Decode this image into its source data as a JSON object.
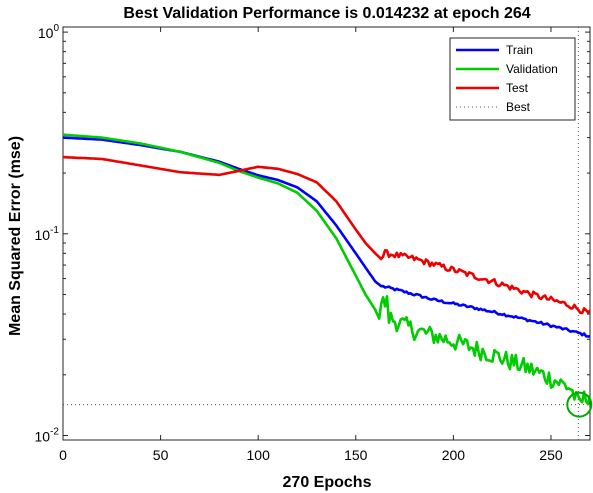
{
  "chart_data": {
    "type": "line",
    "title": "Best Validation Performance is 0.014232 at epoch 264",
    "xlabel": "270 Epochs",
    "ylabel": "Mean Squared Error  (mse)",
    "yscale": "log",
    "xlim": [
      0,
      270
    ],
    "ylim": [
      0.0095,
      1.06
    ],
    "xticks": [
      0,
      50,
      100,
      150,
      200,
      250
    ],
    "yticks": [
      {
        "value": 0.01,
        "base": "10",
        "exp": "-2"
      },
      {
        "value": 0.1,
        "base": "10",
        "exp": "-1"
      },
      {
        "value": 1,
        "base": "10",
        "exp": "0"
      }
    ],
    "grid": false,
    "legend_position": "top-right",
    "best": {
      "epoch": 264,
      "value": 0.014232,
      "label": "Best",
      "color": "#00aa00"
    },
    "series": [
      {
        "name": "Train",
        "color": "#0000ff",
        "points": [
          [
            0,
            0.3
          ],
          [
            20,
            0.293
          ],
          [
            40,
            0.275
          ],
          [
            60,
            0.255
          ],
          [
            80,
            0.228
          ],
          [
            90,
            0.21
          ],
          [
            100,
            0.195
          ],
          [
            110,
            0.185
          ],
          [
            120,
            0.17
          ],
          [
            130,
            0.145
          ],
          [
            140,
            0.11
          ],
          [
            150,
            0.08
          ],
          [
            155,
            0.068
          ],
          [
            160,
            0.058
          ],
          [
            163,
            0.055
          ],
          [
            170,
            0.053
          ],
          [
            180,
            0.05
          ],
          [
            190,
            0.047
          ],
          [
            200,
            0.045
          ],
          [
            210,
            0.043
          ],
          [
            220,
            0.041
          ],
          [
            230,
            0.039
          ],
          [
            240,
            0.037
          ],
          [
            250,
            0.035
          ],
          [
            260,
            0.033
          ],
          [
            270,
            0.031
          ]
        ],
        "noise": 0.025
      },
      {
        "name": "Validation",
        "color": "#00cc00",
        "points": [
          [
            0,
            0.31
          ],
          [
            20,
            0.3
          ],
          [
            40,
            0.28
          ],
          [
            60,
            0.255
          ],
          [
            80,
            0.225
          ],
          [
            90,
            0.205
          ],
          [
            100,
            0.19
          ],
          [
            110,
            0.178
          ],
          [
            120,
            0.16
          ],
          [
            130,
            0.13
          ],
          [
            140,
            0.095
          ],
          [
            150,
            0.062
          ],
          [
            155,
            0.05
          ],
          [
            160,
            0.042
          ],
          [
            162,
            0.038
          ],
          [
            163,
            0.045
          ],
          [
            166,
            0.045
          ],
          [
            167,
            0.038
          ],
          [
            180,
            0.033
          ],
          [
            200,
            0.029
          ],
          [
            220,
            0.025
          ],
          [
            240,
            0.021
          ],
          [
            250,
            0.019
          ],
          [
            260,
            0.017
          ],
          [
            264,
            0.0142
          ],
          [
            270,
            0.016
          ]
        ],
        "noise": 0.18
      },
      {
        "name": "Test",
        "color": "#ee0000",
        "points": [
          [
            0,
            0.24
          ],
          [
            20,
            0.235
          ],
          [
            40,
            0.218
          ],
          [
            60,
            0.202
          ],
          [
            80,
            0.196
          ],
          [
            90,
            0.205
          ],
          [
            100,
            0.215
          ],
          [
            110,
            0.21
          ],
          [
            120,
            0.198
          ],
          [
            130,
            0.18
          ],
          [
            140,
            0.145
          ],
          [
            150,
            0.105
          ],
          [
            155,
            0.09
          ],
          [
            160,
            0.08
          ],
          [
            163,
            0.075
          ],
          [
            165,
            0.08
          ],
          [
            180,
            0.075
          ],
          [
            200,
            0.066
          ],
          [
            220,
            0.058
          ],
          [
            240,
            0.05
          ],
          [
            260,
            0.044
          ],
          [
            270,
            0.04
          ]
        ],
        "noise": 0.06
      }
    ]
  }
}
